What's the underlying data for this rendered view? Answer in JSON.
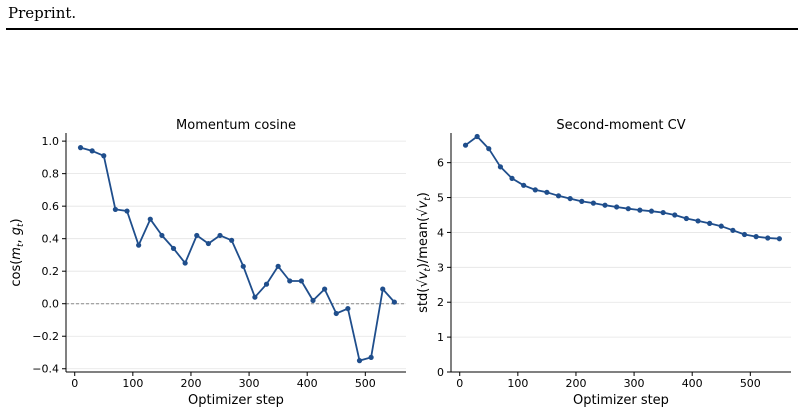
{
  "page": {
    "header": "Preprint."
  },
  "chart_data": [
    {
      "type": "line",
      "title": "Momentum cosine",
      "xlabel": "Optimizer step",
      "ylabel": "cos(m_t, g_t)",
      "xlim": [
        -15,
        570
      ],
      "ylim": [
        -0.42,
        1.05
      ],
      "xticks": [
        0,
        100,
        200,
        300,
        400,
        500
      ],
      "yticks": [
        -0.4,
        -0.2,
        0.0,
        0.2,
        0.4,
        0.6,
        0.8,
        1.0
      ],
      "ytick_labels": [
        "−0.4",
        "−0.2",
        "0.0",
        "0.2",
        "0.4",
        "0.6",
        "0.8",
        "1.0"
      ],
      "grid": "horizontal",
      "reference_line": {
        "y": 0.0,
        "style": "dashed",
        "color": "#888888"
      },
      "color": "#1f4e8c",
      "series": [
        {
          "x": [
            10,
            30,
            50,
            70,
            90,
            110,
            130,
            150,
            170,
            190,
            210,
            230,
            250,
            270,
            290,
            310,
            330,
            350,
            370,
            390,
            410,
            430,
            450,
            470,
            490,
            510,
            530,
            550
          ],
          "values": [
            0.96,
            0.94,
            0.91,
            0.58,
            0.57,
            0.36,
            0.52,
            0.42,
            0.34,
            0.25,
            0.42,
            0.37,
            0.42,
            0.39,
            0.23,
            0.04,
            0.12,
            0.23,
            0.14,
            0.14,
            0.02,
            0.09,
            -0.06,
            -0.03,
            -0.35,
            -0.33,
            0.09,
            0.01
          ]
        }
      ]
    },
    {
      "type": "line",
      "title": "Second-moment CV",
      "xlabel": "Optimizer step",
      "ylabel": "std(√v_t)/mean(√v_t)",
      "xlim": [
        -15,
        570
      ],
      "ylim": [
        0,
        6.85
      ],
      "xticks": [
        0,
        100,
        200,
        300,
        400,
        500
      ],
      "yticks": [
        0,
        1,
        2,
        3,
        4,
        5,
        6
      ],
      "ytick_labels": [
        "0",
        "1",
        "2",
        "3",
        "4",
        "5",
        "6"
      ],
      "grid": "horizontal",
      "color": "#1f4e8c",
      "series": [
        {
          "x": [
            10,
            30,
            50,
            70,
            90,
            110,
            130,
            150,
            170,
            190,
            210,
            230,
            250,
            270,
            290,
            310,
            330,
            350,
            370,
            390,
            410,
            430,
            450,
            470,
            490,
            510,
            530,
            550
          ],
          "values": [
            6.5,
            6.75,
            6.4,
            5.88,
            5.55,
            5.35,
            5.22,
            5.15,
            5.05,
            4.97,
            4.89,
            4.84,
            4.78,
            4.73,
            4.68,
            4.64,
            4.61,
            4.57,
            4.5,
            4.4,
            4.33,
            4.26,
            4.18,
            4.06,
            3.94,
            3.88,
            3.84,
            3.82
          ]
        }
      ]
    }
  ]
}
